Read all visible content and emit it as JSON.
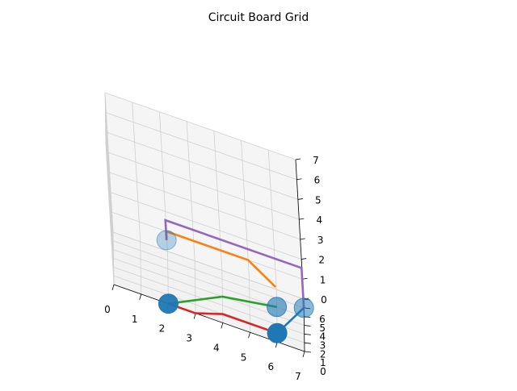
{
  "chart_data": {
    "type": "line",
    "projection": "3d",
    "title": "Circuit Board Grid",
    "xlabel": "",
    "ylabel": "",
    "zlabel": "",
    "xlim": [
      0,
      7
    ],
    "ylim": [
      0,
      6
    ],
    "zlim": [
      0,
      7
    ],
    "xticks": [
      "0",
      "1",
      "2",
      "3",
      "4",
      "5",
      "6",
      "7"
    ],
    "yticks": [
      "0",
      "1",
      "2",
      "3",
      "4",
      "5",
      "6"
    ],
    "zticks": [
      "0",
      "1",
      "2",
      "3",
      "4",
      "5",
      "6",
      "7"
    ],
    "grid": true,
    "series": [
      {
        "color": "#1f77b4",
        "points": [
          [
            6,
            1,
            0
          ],
          [
            7,
            5,
            0
          ]
        ]
      },
      {
        "color": "#ff7f0e",
        "points": [
          [
            2,
            5,
            1
          ],
          [
            2,
            6,
            1
          ],
          [
            5,
            6,
            1
          ],
          [
            6,
            4,
            1
          ]
        ]
      },
      {
        "color": "#2ca02c",
        "points": [
          [
            2,
            0,
            0
          ],
          [
            4,
            3,
            0
          ],
          [
            6,
            4,
            0
          ]
        ]
      },
      {
        "color": "#d62728",
        "points": [
          [
            2,
            0,
            0
          ],
          [
            3,
            0,
            0
          ],
          [
            4,
            1,
            0
          ],
          [
            6,
            1,
            0
          ]
        ]
      },
      {
        "color": "#9467bd",
        "points": [
          [
            2,
            5,
            1
          ],
          [
            2,
            5,
            2
          ],
          [
            7,
            5,
            2
          ],
          [
            7,
            5,
            1
          ],
          [
            7,
            5,
            0
          ]
        ]
      }
    ],
    "nodes": {
      "color": "#1f77b4",
      "points": [
        [
          2,
          0,
          0
        ],
        [
          6,
          1,
          0
        ],
        [
          6,
          4,
          0
        ],
        [
          7,
          5,
          0
        ],
        [
          2,
          5,
          1
        ]
      ]
    }
  }
}
